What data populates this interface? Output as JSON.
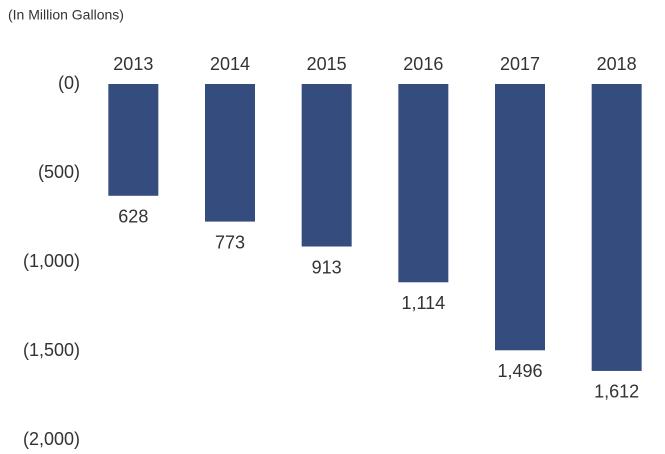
{
  "chart_data": {
    "type": "bar",
    "subtitle": "(In Million Gallons)",
    "categories": [
      "2013",
      "2014",
      "2015",
      "2016",
      "2017",
      "2018"
    ],
    "values": [
      -628,
      -773,
      -913,
      -1114,
      -1496,
      -1612
    ],
    "value_labels": [
      "628",
      "773",
      "913",
      "1,114",
      "1,496",
      "1,612"
    ],
    "color": "#344d7e",
    "ylim": [
      0,
      -2000
    ],
    "yticks": [
      {
        "value": 0,
        "label": "(0)"
      },
      {
        "value": -500,
        "label": "(500)"
      },
      {
        "value": -1000,
        "label": "(1,000)"
      },
      {
        "value": -1500,
        "label": "(1,500)"
      },
      {
        "value": -2000,
        "label": "(2,000)"
      }
    ],
    "grid": false
  }
}
